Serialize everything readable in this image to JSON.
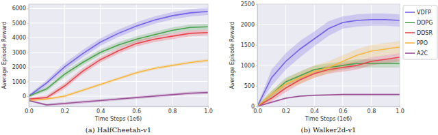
{
  "chart_data": [
    {
      "type": "line",
      "title": "(a) HalfCheetah-v1",
      "x_label": "Time Steps (1e6)",
      "y_label": "Average Episode Reward",
      "x": [
        0,
        0.1,
        0.2,
        0.3,
        0.4,
        0.5,
        0.6,
        0.7,
        0.8,
        0.9,
        1.0
      ],
      "xlim": [
        0,
        1.0
      ],
      "xticks": [
        {
          "value": 0,
          "label": "0.0"
        },
        0.2,
        0.4,
        0.6,
        0.8,
        {
          "value": 1.0,
          "label": "1.0"
        }
      ],
      "ylim": [
        -700,
        6300
      ],
      "yticks": [
        0,
        1000,
        2000,
        3000,
        4000,
        5000,
        6000
      ],
      "grid": true,
      "series": [
        {
          "name": "VDFP",
          "color": "#7060e8",
          "values": [
            0,
            900,
            2000,
            2900,
            3700,
            4300,
            4800,
            5200,
            5500,
            5700,
            5800
          ],
          "errors": [
            100,
            200,
            250,
            250,
            250,
            250,
            250,
            250,
            250,
            250,
            250
          ]
        },
        {
          "name": "DDPG",
          "color": "#4aa04a",
          "values": [
            0,
            500,
            1500,
            2300,
            3000,
            3500,
            3900,
            4200,
            4500,
            4700,
            4750
          ],
          "errors": [
            100,
            150,
            200,
            200,
            200,
            200,
            200,
            200,
            200,
            200,
            200
          ]
        },
        {
          "name": "DDSR",
          "color": "#e8434b",
          "values": [
            -200,
            -100,
            700,
            1700,
            2500,
            3100,
            3600,
            3900,
            4100,
            4300,
            4350
          ],
          "errors": [
            100,
            150,
            200,
            200,
            200,
            200,
            200,
            200,
            200,
            200,
            200
          ]
        },
        {
          "name": "PPO",
          "color": "#f5b642",
          "values": [
            -300,
            -200,
            0,
            400,
            800,
            1200,
            1600,
            1900,
            2100,
            2300,
            2450
          ],
          "errors": [
            50,
            80,
            100,
            100,
            100,
            100,
            100,
            100,
            100,
            100,
            100
          ]
        },
        {
          "name": "A2C",
          "color": "#9b4f96",
          "values": [
            -300,
            -600,
            -500,
            -400,
            -300,
            -200,
            -100,
            0,
            100,
            200,
            250
          ],
          "errors": [
            50,
            80,
            100,
            100,
            100,
            100,
            100,
            100,
            100,
            100,
            100
          ]
        }
      ]
    },
    {
      "type": "line",
      "title": "(b) Walker2d-v1",
      "x_label": "Time Steps (1e6)",
      "y_label": "Average Episode Reward",
      "x": [
        0,
        0.1,
        0.2,
        0.3,
        0.4,
        0.5,
        0.6,
        0.7,
        0.8,
        0.9,
        1.0
      ],
      "xlim": [
        0,
        1.0
      ],
      "xticks": [
        {
          "value": 0,
          "label": "0.0"
        },
        0.2,
        0.4,
        0.6,
        0.8,
        {
          "value": 1.0,
          "label": "1.0"
        }
      ],
      "ylim": [
        0,
        2500
      ],
      "yticks": [
        0,
        500,
        1000,
        1500,
        2000,
        2500
      ],
      "grid": true,
      "legend": "right",
      "series": [
        {
          "name": "VDFP",
          "color": "#7060e8",
          "values": [
            0,
            700,
            1100,
            1400,
            1650,
            1900,
            2050,
            2100,
            2120,
            2120,
            2100
          ],
          "errors": [
            30,
            200,
            200,
            200,
            180,
            180,
            150,
            150,
            150,
            150,
            150
          ]
        },
        {
          "name": "DDPG",
          "color": "#4aa04a",
          "values": [
            0,
            300,
            600,
            750,
            900,
            950,
            1000,
            1050,
            1050,
            1050,
            1050
          ],
          "errors": [
            30,
            80,
            100,
            100,
            100,
            100,
            100,
            100,
            100,
            100,
            100
          ]
        },
        {
          "name": "DDSR",
          "color": "#e8434b",
          "values": [
            0,
            200,
            450,
            650,
            800,
            900,
            950,
            1000,
            1100,
            1150,
            1200
          ],
          "errors": [
            30,
            80,
            100,
            100,
            100,
            100,
            100,
            100,
            100,
            100,
            100
          ]
        },
        {
          "name": "PPO",
          "color": "#f5b642",
          "values": [
            0,
            300,
            550,
            700,
            850,
            950,
            1100,
            1250,
            1350,
            1400,
            1450
          ],
          "errors": [
            30,
            80,
            120,
            150,
            150,
            150,
            150,
            150,
            150,
            150,
            150
          ]
        },
        {
          "name": "A2C",
          "color": "#9b4f96",
          "values": [
            0,
            100,
            200,
            250,
            270,
            280,
            290,
            290,
            290,
            290,
            290
          ],
          "errors": [
            10,
            20,
            20,
            20,
            20,
            20,
            20,
            20,
            20,
            20,
            20
          ]
        }
      ]
    }
  ]
}
